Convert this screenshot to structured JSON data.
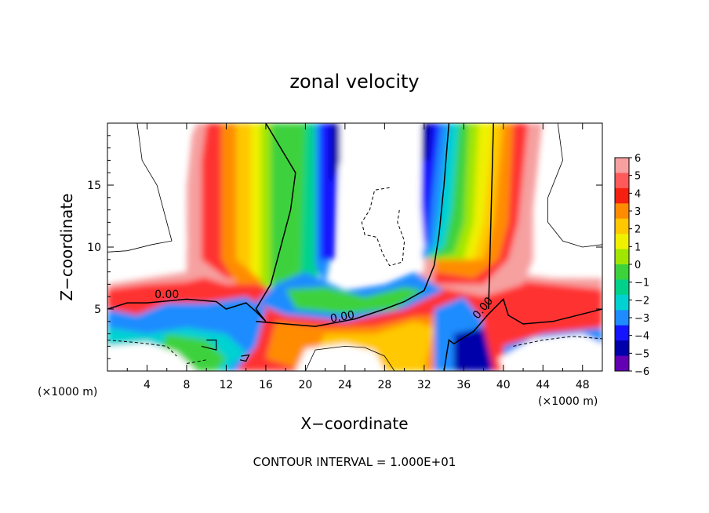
{
  "chart_data": {
    "type": "heatmap",
    "title": "zonal velocity",
    "xlabel": "X−coordinate",
    "ylabel": "Z−coordinate",
    "x_unit_left": "(×1000 m)",
    "x_unit_right": "(×1000 m)",
    "footer": "CONTOUR INTERVAL = 1.000E+01",
    "xlim": [
      0,
      50
    ],
    "ylim": [
      0,
      20
    ],
    "xticks": [
      4,
      8,
      12,
      16,
      20,
      24,
      28,
      32,
      36,
      40,
      44,
      48
    ],
    "yticks": [
      5,
      10,
      15
    ],
    "contour_labels": [
      {
        "text": "0.00",
        "x": 6,
        "y": 5.9
      },
      {
        "text": "0.00",
        "x": 23.8,
        "y": 4.1
      },
      {
        "text": "0.00",
        "x": 38.2,
        "y": 4.9
      }
    ],
    "colorbar": {
      "levels": [
        6,
        5,
        4,
        3,
        2,
        1,
        0,
        -1,
        -2,
        -3,
        -4,
        -5,
        -6
      ],
      "labels": [
        "6",
        "5",
        "4",
        "3",
        "2",
        "1",
        "0",
        "−1",
        "−2",
        "−3",
        "−4",
        "−5",
        "−6"
      ],
      "colors": [
        "#f6a0a0",
        "#ff5a5a",
        "#f52010",
        "#ff8c00",
        "#ffc800",
        "#f0f000",
        "#a0e600",
        "#3cd23c",
        "#00d28c",
        "#00d2d2",
        "#1e8cff",
        "#1414ff",
        "#0000aa",
        "#6400b4"
      ]
    },
    "colors": {
      "background": "#ffffff",
      "axis": "#000000"
    }
  }
}
